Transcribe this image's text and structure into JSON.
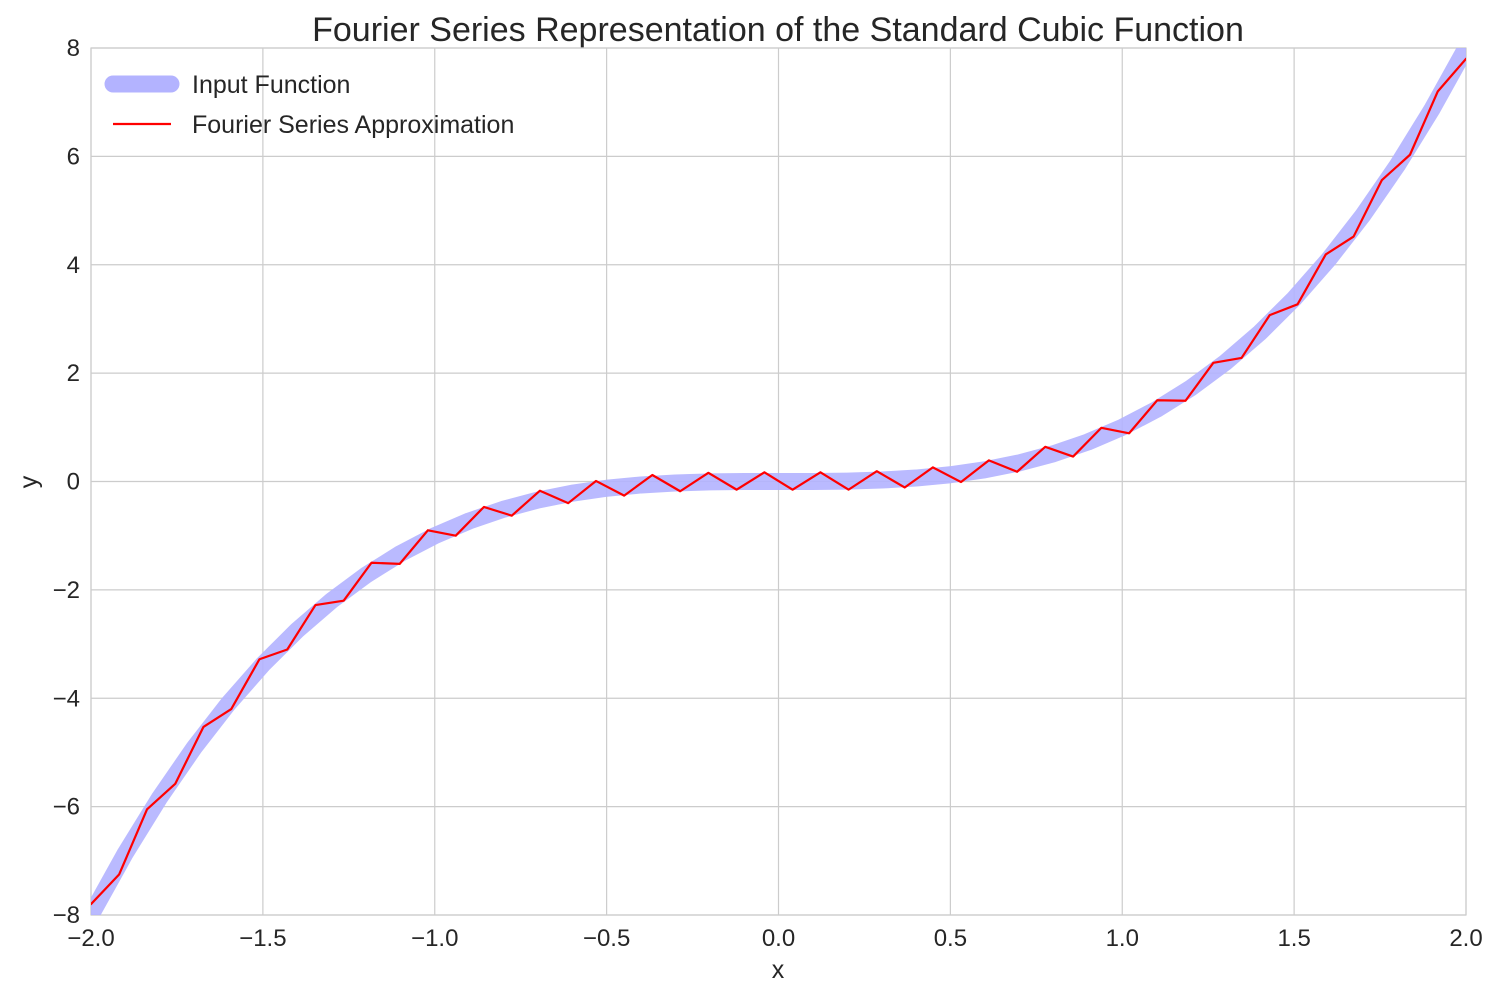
{
  "chart_data": {
    "type": "line",
    "title": "Fourier Series Representation of the Standard Cubic Function",
    "xlabel": "x",
    "ylabel": "y",
    "xlim": [
      -2.0,
      2.0
    ],
    "ylim": [
      -8,
      8
    ],
    "grid": true,
    "legend_position": "top-left",
    "x_ticks": [
      {
        "value": -2.0,
        "label": "−2.0"
      },
      {
        "value": -1.5,
        "label": "−1.5"
      },
      {
        "value": -1.0,
        "label": "−1.0"
      },
      {
        "value": -0.5,
        "label": "−0.5"
      },
      {
        "value": 0.0,
        "label": "0.0"
      },
      {
        "value": 0.5,
        "label": "0.5"
      },
      {
        "value": 1.0,
        "label": "1.0"
      },
      {
        "value": 1.5,
        "label": "1.5"
      },
      {
        "value": 2.0,
        "label": "2.0"
      }
    ],
    "y_ticks": [
      {
        "value": -8,
        "label": "−8"
      },
      {
        "value": -6,
        "label": "−6"
      },
      {
        "value": -4,
        "label": "−4"
      },
      {
        "value": -2,
        "label": "−2"
      },
      {
        "value": 0,
        "label": "0"
      },
      {
        "value": 2,
        "label": "2"
      },
      {
        "value": 4,
        "label": "4"
      },
      {
        "value": 6,
        "label": "6"
      },
      {
        "value": 8,
        "label": "8"
      }
    ],
    "series": [
      {
        "name": "Input Function",
        "color": "#b3b3ff",
        "style": "thick",
        "x": [
          -2.0,
          -1.9,
          -1.8,
          -1.7,
          -1.6,
          -1.5,
          -1.4,
          -1.3,
          -1.2,
          -1.1,
          -1.0,
          -0.9,
          -0.8,
          -0.7,
          -0.6,
          -0.5,
          -0.4,
          -0.3,
          -0.2,
          -0.1,
          0.0,
          0.1,
          0.2,
          0.3,
          0.4,
          0.5,
          0.6,
          0.7,
          0.8,
          0.9,
          1.0,
          1.1,
          1.2,
          1.3,
          1.4,
          1.5,
          1.6,
          1.7,
          1.8,
          1.9,
          2.0
        ],
        "y": [
          -8.0,
          -6.859,
          -5.832,
          -4.913,
          -4.096,
          -3.375,
          -2.744,
          -2.197,
          -1.728,
          -1.331,
          -1.0,
          -0.729,
          -0.512,
          -0.343,
          -0.216,
          -0.125,
          -0.064,
          -0.027,
          -0.008,
          -0.001,
          0.0,
          0.001,
          0.008,
          0.027,
          0.064,
          0.125,
          0.216,
          0.343,
          0.512,
          0.729,
          1.0,
          1.331,
          1.728,
          2.197,
          2.744,
          3.375,
          4.096,
          4.913,
          5.832,
          6.859,
          8.0
        ]
      },
      {
        "name": "Fourier Series Approximation",
        "color": "#ff0000",
        "style": "thin",
        "x": [
          -2.0,
          -1.918,
          -1.837,
          -1.755,
          -1.673,
          -1.592,
          -1.51,
          -1.429,
          -1.347,
          -1.265,
          -1.184,
          -1.102,
          -1.02,
          -0.939,
          -0.857,
          -0.776,
          -0.694,
          -0.612,
          -0.531,
          -0.449,
          -0.367,
          -0.286,
          -0.204,
          -0.122,
          -0.041,
          0.041,
          0.122,
          0.204,
          0.286,
          0.367,
          0.449,
          0.531,
          0.612,
          0.694,
          0.776,
          0.857,
          0.939,
          1.02,
          1.102,
          1.184,
          1.265,
          1.347,
          1.429,
          1.51,
          1.592,
          1.673,
          1.755,
          1.837,
          1.918,
          2.0
        ],
        "y": [
          -7.8,
          -7.25,
          -6.05,
          -5.58,
          -4.53,
          -4.2,
          -3.28,
          -3.1,
          -2.28,
          -2.2,
          -1.5,
          -1.52,
          -0.9,
          -1.0,
          -0.47,
          -0.63,
          -0.17,
          -0.4,
          0.01,
          -0.26,
          0.12,
          -0.18,
          0.16,
          -0.15,
          0.17,
          -0.15,
          0.17,
          -0.15,
          0.19,
          -0.11,
          0.26,
          -0.01,
          0.39,
          0.18,
          0.64,
          0.46,
          0.99,
          0.89,
          1.5,
          1.49,
          2.19,
          2.28,
          3.07,
          3.27,
          4.19,
          4.52,
          5.56,
          6.03,
          7.2,
          7.8
        ]
      }
    ]
  }
}
